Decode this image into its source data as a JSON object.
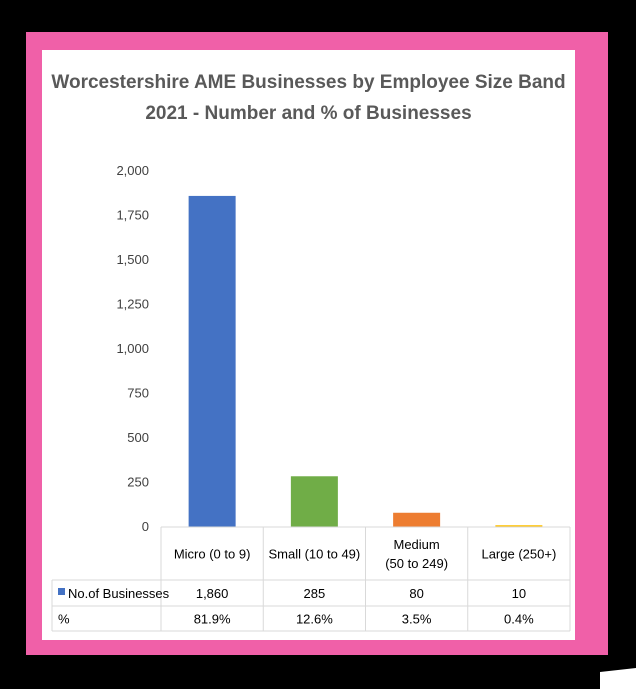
{
  "chart_data": {
    "type": "bar",
    "title_lines": [
      "Worcestershire AME Businesses by Employee Size Band",
      "2021 - Number and % of Businesses"
    ],
    "categories": [
      [
        "Micro (0 to 9)"
      ],
      [
        "Small (10 to 49)"
      ],
      [
        "Medium",
        "(50 to 249)"
      ],
      [
        "Large (250+)"
      ]
    ],
    "values": [
      1860,
      285,
      80,
      10
    ],
    "bar_colors": [
      "#4472c4",
      "#70ad47",
      "#ed7d31",
      "#ffc000"
    ],
    "ylim": [
      0,
      2000
    ],
    "yticks": [
      0,
      250,
      500,
      750,
      1000,
      1250,
      1500,
      1750,
      2000
    ],
    "ytick_labels": [
      "0",
      "250",
      "500",
      "750",
      "1,000",
      "1,250",
      "1,500",
      "1,750",
      "2,000"
    ],
    "data_table": {
      "rows": [
        {
          "label": "No.of Businesses",
          "legend_color": "#4472c4",
          "cells": [
            "1,860",
            "285",
            "80",
            "10"
          ]
        },
        {
          "label": "%",
          "legend_color": null,
          "cells": [
            "81.9%",
            "12.6%",
            "3.5%",
            "0.4%"
          ]
        }
      ]
    },
    "colors": {
      "frame_outer": "#000000",
      "frame_pink": "#f060a8",
      "gridline": "#d9d9d9"
    }
  }
}
